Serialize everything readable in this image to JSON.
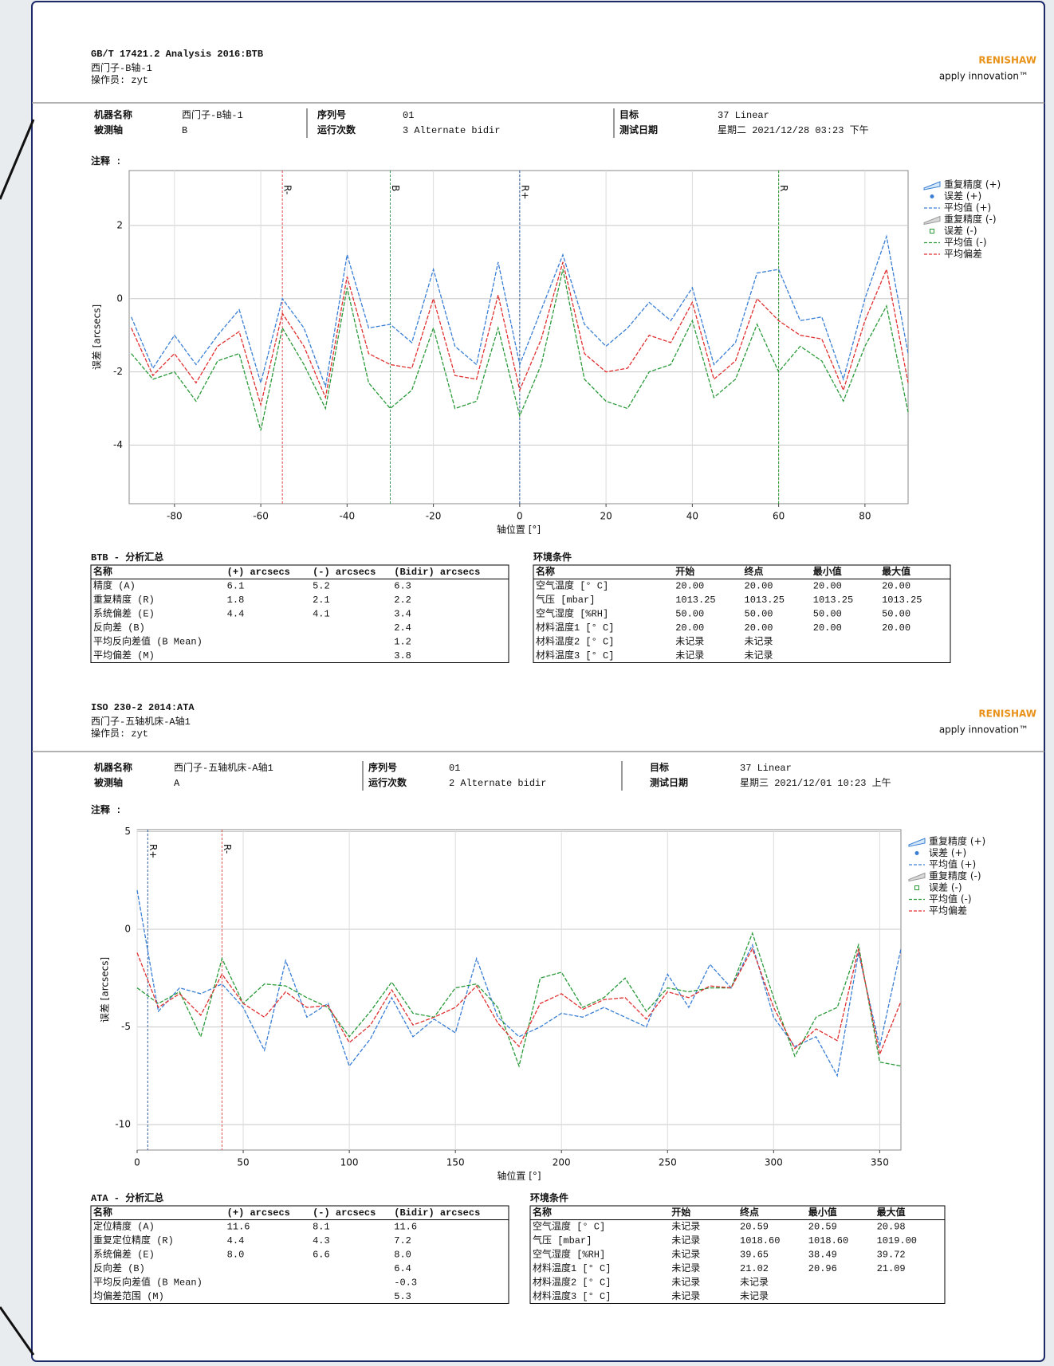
{
  "chart_data": [
    {
      "type": "line",
      "y_label": "误差 [arcsecs]",
      "x_label": "轴位置 [°]",
      "x": [
        -90,
        -85,
        -80,
        -75,
        -70,
        -65,
        -60,
        -55,
        -50,
        -45,
        -40,
        -35,
        -30,
        -25,
        -20,
        -15,
        -10,
        -5,
        0,
        5,
        10,
        15,
        20,
        25,
        30,
        35,
        40,
        45,
        50,
        55,
        60,
        65,
        70,
        75,
        80,
        85,
        90
      ],
      "xlim": [
        -90.5,
        90
      ],
      "xticks": [
        -80,
        -60,
        -40,
        -20,
        0,
        20,
        40,
        60,
        80
      ],
      "ylim": [
        -5.6,
        3.5
      ],
      "yticks": [
        -4,
        -2,
        0,
        2
      ],
      "grid": true,
      "annotations": [
        {
          "x": -55,
          "label": "R-",
          "color": "#e05050"
        },
        {
          "x": -30,
          "label": "B",
          "color": "#3a9a5a"
        },
        {
          "x": 0,
          "label": "R+",
          "color": "#3060a0"
        },
        {
          "x": 60,
          "label": "R",
          "color": "#2a9a2a"
        }
      ],
      "series": [
        {
          "name": "重复精度 (+)",
          "color": "#3a7fd5",
          "style": "band"
        },
        {
          "name": "误差 (+)",
          "color": "#3a7fd5",
          "style": "dot"
        },
        {
          "name": "平均值 (+)",
          "color": "#3a7fd5",
          "style": "line",
          "values": [
            -0.5,
            -1.9,
            -1.0,
            -1.8,
            -1.0,
            -0.3,
            -2.3,
            0.0,
            -0.8,
            -2.4,
            1.2,
            -0.8,
            -0.7,
            -1.2,
            0.8,
            -1.3,
            -1.8,
            1.0,
            -1.8,
            -0.3,
            1.2,
            -0.7,
            -1.3,
            -0.8,
            -0.1,
            -0.6,
            0.3,
            -1.8,
            -1.2,
            0.7,
            0.8,
            -0.6,
            -0.5,
            -2.2,
            0.0,
            1.7,
            -1.5
          ]
        },
        {
          "name": "重复精度 (-)",
          "color": "#999999",
          "style": "band"
        },
        {
          "name": "误差 (-)",
          "color": "#2a9a3a",
          "style": "square"
        },
        {
          "name": "平均值 (-)",
          "color": "#2a9a3a",
          "style": "line",
          "values": [
            -1.5,
            -2.2,
            -2.0,
            -2.8,
            -1.7,
            -1.5,
            -3.6,
            -0.8,
            -1.8,
            -3.0,
            0.3,
            -2.3,
            -3.0,
            -2.5,
            -0.8,
            -3.0,
            -2.8,
            -0.8,
            -3.2,
            -1.8,
            0.8,
            -2.2,
            -2.8,
            -3.0,
            -2.0,
            -1.8,
            -0.6,
            -2.7,
            -2.2,
            -0.7,
            -2.0,
            -1.3,
            -1.7,
            -2.8,
            -1.3,
            -0.2,
            -3.1
          ]
        },
        {
          "name": "平均偏差",
          "color": "#e03030",
          "style": "line",
          "values": [
            -0.8,
            -2.1,
            -1.5,
            -2.3,
            -1.3,
            -0.9,
            -2.9,
            -0.4,
            -1.3,
            -2.7,
            0.6,
            -1.5,
            -1.8,
            -1.9,
            0.0,
            -2.1,
            -2.2,
            0.1,
            -2.5,
            -1.1,
            1.0,
            -1.5,
            -2.0,
            -1.9,
            -1.0,
            -1.2,
            -0.1,
            -2.2,
            -1.7,
            0.0,
            -0.6,
            -1.0,
            -1.1,
            -2.5,
            -0.6,
            0.8,
            -2.3
          ]
        }
      ]
    },
    {
      "type": "line",
      "y_label": "误差 [arcsecs]",
      "x_label": "轴位置 [°]",
      "x": [
        0,
        10,
        20,
        30,
        40,
        50,
        60,
        70,
        80,
        90,
        100,
        110,
        120,
        130,
        140,
        150,
        160,
        170,
        180,
        190,
        200,
        210,
        220,
        230,
        240,
        250,
        260,
        270,
        280,
        290,
        300,
        310,
        320,
        330,
        340,
        350,
        360
      ],
      "xlim": [
        0,
        360
      ],
      "xticks": [
        0,
        50,
        100,
        150,
        200,
        250,
        300,
        350
      ],
      "ylim": [
        -11.3,
        5.1
      ],
      "yticks": [
        -10,
        -5,
        0,
        5
      ],
      "grid": true,
      "annotations": [
        {
          "x": 5,
          "label": "R+",
          "color": "#3060a0"
        },
        {
          "x": 40,
          "label": "R-",
          "color": "#e05050"
        }
      ],
      "series": [
        {
          "name": "重复精度 (+)",
          "color": "#3a7fd5",
          "style": "band"
        },
        {
          "name": "误差 (+)",
          "color": "#3a7fd5",
          "style": "dot"
        },
        {
          "name": "平均值 (+)",
          "color": "#3a7fd5",
          "style": "line",
          "values": [
            2.0,
            -4.2,
            -3.0,
            -3.3,
            -2.8,
            -4.0,
            -6.2,
            -1.6,
            -4.5,
            -3.8,
            -7.0,
            -5.6,
            -3.5,
            -5.5,
            -4.6,
            -5.3,
            -1.5,
            -4.5,
            -5.5,
            -5.0,
            -4.3,
            -4.5,
            -4.0,
            -4.5,
            -5.0,
            -2.3,
            -4.0,
            -1.8,
            -3.0,
            -0.8,
            -4.5,
            -6.0,
            -5.5,
            -7.5,
            -1.2,
            -6.0,
            -1.0
          ]
        },
        {
          "name": "重复精度 (-)",
          "color": "#999999",
          "style": "band"
        },
        {
          "name": "误差 (-)",
          "color": "#2a9a3a",
          "style": "square"
        },
        {
          "name": "平均值 (-)",
          "color": "#2a9a3a",
          "style": "line",
          "values": [
            -3.0,
            -3.8,
            -3.2,
            -5.5,
            -1.5,
            -3.8,
            -2.8,
            -2.9,
            -3.5,
            -4.0,
            -5.5,
            -4.2,
            -2.7,
            -4.3,
            -4.5,
            -3.0,
            -2.8,
            -4.0,
            -7.0,
            -2.5,
            -2.2,
            -4.0,
            -3.5,
            -2.5,
            -4.2,
            -3.0,
            -3.2,
            -3.0,
            -3.0,
            -0.2,
            -3.5,
            -6.5,
            -4.5,
            -4.0,
            -0.8,
            -6.8,
            -7.0
          ]
        },
        {
          "name": "平均偏差",
          "color": "#e03030",
          "style": "line",
          "values": [
            -1.2,
            -4.0,
            -3.3,
            -4.4,
            -2.3,
            -3.8,
            -4.5,
            -3.2,
            -4.0,
            -3.9,
            -5.8,
            -4.9,
            -3.1,
            -4.9,
            -4.5,
            -4.0,
            -2.9,
            -4.8,
            -6.0,
            -3.8,
            -3.3,
            -4.1,
            -3.6,
            -3.5,
            -4.6,
            -3.2,
            -3.5,
            -2.9,
            -3.0,
            -1.0,
            -4.0,
            -6.1,
            -5.1,
            -5.7,
            -1.0,
            -6.4,
            -3.7
          ]
        }
      ]
    }
  ],
  "sections": [
    {
      "title": "GB/T 17421.2 Analysis 2016:BTB",
      "subtitle": "西门子-B轴-1",
      "operator": "操作员: zyt",
      "logo": "RENISHAW",
      "tagline": "apply innovation™",
      "info": [
        {
          "label": "机器名称",
          "value": "西门子-B轴-1"
        },
        {
          "label": "被测轴",
          "value": "B"
        },
        {
          "label": "序列号",
          "value": "01"
        },
        {
          "label": "运行次数",
          "value": "3 Alternate bidir"
        },
        {
          "label": "目标",
          "value": "37 Linear"
        },
        {
          "label": "测试日期",
          "value": "星期二 2021/12/28 03:23 下午"
        }
      ],
      "notes_label": "注释 :",
      "summary": {
        "title": "BTB - 分析汇总",
        "header": [
          "名称",
          "(+) arcsecs",
          "(-) arcsecs",
          "(Bidir) arcsecs"
        ],
        "rows": [
          [
            "精度 (A)",
            "6.1",
            "5.2",
            "6.3"
          ],
          [
            "重复精度 (R)",
            "1.8",
            "2.1",
            "2.2"
          ],
          [
            "系统偏差 (E)",
            "4.4",
            "4.1",
            "3.4"
          ],
          [
            "反向差 (B)",
            null,
            null,
            "2.4"
          ],
          [
            "平均反向差值 (B Mean)",
            null,
            null,
            "1.2"
          ],
          [
            "平均偏差 (M)",
            null,
            null,
            "3.8"
          ]
        ]
      },
      "environment": {
        "title": "环境条件",
        "header": [
          "名称",
          "开始",
          "终点",
          "最小值",
          "最大值"
        ],
        "rows": [
          [
            "空气温度 [° C]",
            "20.00",
            "20.00",
            "20.00",
            "20.00"
          ],
          [
            "气压 [mbar]",
            "1013.25",
            "1013.25",
            "1013.25",
            "1013.25"
          ],
          [
            "空气湿度 [%RH]",
            "50.00",
            "50.00",
            "50.00",
            "50.00"
          ],
          [
            "材料温度1 [° C]",
            "20.00",
            "20.00",
            "20.00",
            "20.00"
          ],
          [
            "材料温度2 [° C]",
            "未记录",
            "未记录",
            null,
            null
          ],
          [
            "材料温度3 [° C]",
            "未记录",
            "未记录",
            null,
            null
          ]
        ]
      }
    },
    {
      "title": "ISO 230-2 2014:ATA",
      "subtitle": "西门子-五轴机床-A轴1",
      "operator": "操作员: zyt",
      "logo": "RENISHAW",
      "tagline": "apply innovation™",
      "info": [
        {
          "label": "机器名称",
          "value": "西门子-五轴机床-A轴1"
        },
        {
          "label": "被测轴",
          "value": "A"
        },
        {
          "label": "序列号",
          "value": "01"
        },
        {
          "label": "运行次数",
          "value": "2 Alternate bidir"
        },
        {
          "label": "目标",
          "value": "37 Linear"
        },
        {
          "label": "测试日期",
          "value": "星期三 2021/12/01 10:23 上午"
        }
      ],
      "notes_label": "注释 :",
      "summary": {
        "title": "ATA - 分析汇总",
        "header": [
          "名称",
          "(+) arcsecs",
          "(-) arcsecs",
          "(Bidir) arcsecs"
        ],
        "rows": [
          [
            "定位精度 (A)",
            "11.6",
            "8.1",
            "11.6"
          ],
          [
            "重复定位精度 (R)",
            "4.4",
            "4.3",
            "7.2"
          ],
          [
            "系统偏差 (E)",
            "8.0",
            "6.6",
            "8.0"
          ],
          [
            "反向差 (B)",
            null,
            null,
            "6.4"
          ],
          [
            "平均反向差值 (B Mean)",
            null,
            null,
            "-0.3"
          ],
          [
            "均偏差范围 (M)",
            null,
            null,
            "5.3"
          ]
        ]
      },
      "environment": {
        "title": "环境条件",
        "header": [
          "名称",
          "开始",
          "终点",
          "最小值",
          "最大值"
        ],
        "rows": [
          [
            "空气温度 [° C]",
            "未记录",
            "20.59",
            "20.59",
            "20.98"
          ],
          [
            "气压 [mbar]",
            "未记录",
            "1018.60",
            "1018.60",
            "1019.00"
          ],
          [
            "空气湿度 [%RH]",
            "未记录",
            "39.65",
            "38.49",
            "39.72"
          ],
          [
            "材料温度1 [° C]",
            "未记录",
            "21.02",
            "20.96",
            "21.09"
          ],
          [
            "材料温度2 [° C]",
            "未记录",
            "未记录",
            null,
            null
          ],
          [
            "材料温度3 [° C]",
            "未记录",
            "未记录",
            null,
            null
          ]
        ]
      }
    }
  ]
}
